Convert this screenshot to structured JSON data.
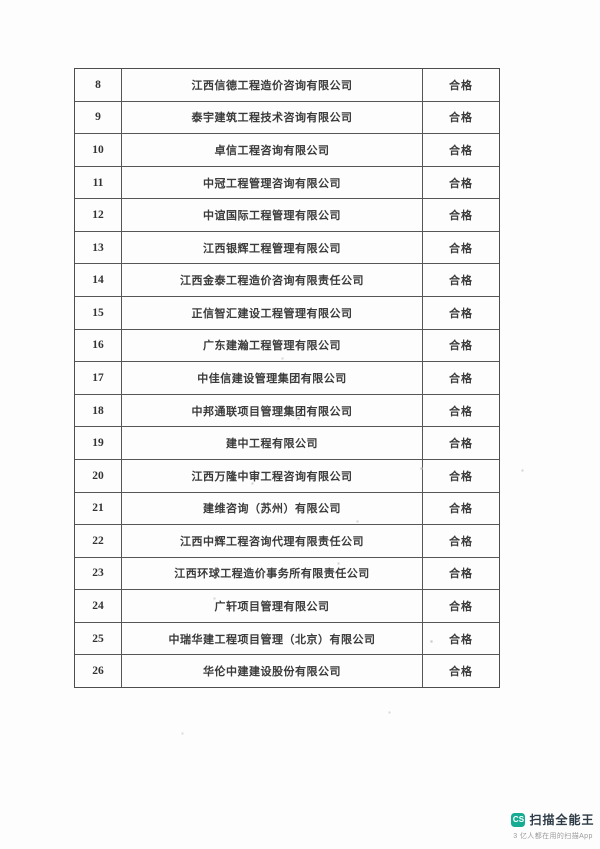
{
  "table": {
    "result_value": "合格",
    "rows": [
      {
        "no": "8",
        "company": "江西信德工程造价咨询有限公司",
        "result": "合格"
      },
      {
        "no": "9",
        "company": "泰宇建筑工程技术咨询有限公司",
        "result": "合格"
      },
      {
        "no": "10",
        "company": "卓信工程咨询有限公司",
        "result": "合格"
      },
      {
        "no": "11",
        "company": "中冠工程管理咨询有限公司",
        "result": "合格"
      },
      {
        "no": "12",
        "company": "中谊国际工程管理有限公司",
        "result": "合格"
      },
      {
        "no": "13",
        "company": "江西银辉工程管理有限公司",
        "result": "合格"
      },
      {
        "no": "14",
        "company": "江西金泰工程造价咨询有限责任公司",
        "result": "合格"
      },
      {
        "no": "15",
        "company": "正信智汇建设工程管理有限公司",
        "result": "合格"
      },
      {
        "no": "16",
        "company": "广东建瀚工程管理有限公司",
        "result": "合格"
      },
      {
        "no": "17",
        "company": "中佳信建设管理集团有限公司",
        "result": "合格"
      },
      {
        "no": "18",
        "company": "中邦通联项目管理集团有限公司",
        "result": "合格"
      },
      {
        "no": "19",
        "company": "建中工程有限公司",
        "result": "合格"
      },
      {
        "no": "20",
        "company": "江西万隆中审工程咨询有限公司",
        "result": "合格"
      },
      {
        "no": "21",
        "company": "建维咨询（苏州）有限公司",
        "result": "合格"
      },
      {
        "no": "22",
        "company": "江西中辉工程咨询代理有限责任公司",
        "result": "合格"
      },
      {
        "no": "23",
        "company": "江西环球工程造价事务所有限责任公司",
        "result": "合格"
      },
      {
        "no": "24",
        "company": "广轩项目管理有限公司",
        "result": "合格"
      },
      {
        "no": "25",
        "company": "中瑞华建工程项目管理（北京）有限公司",
        "result": "合格"
      },
      {
        "no": "26",
        "company": "华伦中建建设股份有限公司",
        "result": "合格"
      }
    ]
  },
  "watermark": {
    "icon_text": "CS",
    "app_name": "扫描全能王",
    "tagline": "3 亿人都在用的扫描App",
    "brand_color": "#16ab93"
  }
}
